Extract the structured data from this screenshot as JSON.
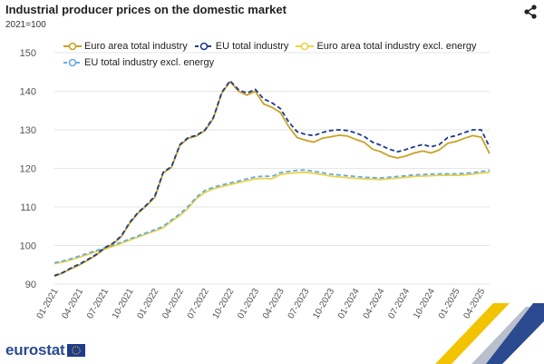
{
  "header": {
    "title": "Industrial producer prices on the domestic market",
    "subtitle": "2021=100"
  },
  "footer": {
    "brand": "eurostat"
  },
  "colors": {
    "gold": "#c9a227",
    "navy": "#1f3b8c",
    "light_yellow": "#ecd348",
    "light_blue": "#6aabe0",
    "grid": "#e6e6e6",
    "axis_text": "#555555"
  },
  "chart_data": {
    "type": "line",
    "title": "Industrial producer prices on the domestic market",
    "ylabel": "2021=100",
    "ylim": [
      90,
      150
    ],
    "yticks": [
      90,
      100,
      110,
      120,
      130,
      140,
      150
    ],
    "xtick_labels": [
      "01-2021",
      "04-2021",
      "07-2021",
      "10-2021",
      "01-2022",
      "04-2022",
      "07-2022",
      "10-2022",
      "01-2023",
      "04-2023",
      "07-2023",
      "10-2023",
      "01-2024",
      "04-2024",
      "07-2024",
      "10-2024",
      "01-2025",
      "04-2025"
    ],
    "grid": "horizontal",
    "legend_position": "top-left",
    "series": [
      {
        "name": "Euro area total industry",
        "color": "#c9a227",
        "style": "solid",
        "values": [
          92.0,
          92.9,
          94.0,
          95.0,
          96.2,
          97.5,
          99.2,
          100.4,
          102.3,
          105.8,
          108.4,
          110.3,
          112.5,
          118.8,
          120.3,
          126.0,
          127.8,
          128.4,
          129.8,
          133.0,
          139.5,
          142.5,
          140.0,
          139.0,
          140.0,
          136.7,
          135.8,
          134.5,
          130.8,
          128.0,
          127.3,
          126.8,
          127.8,
          128.2,
          128.6,
          128.4,
          127.5,
          126.8,
          125.0,
          124.3,
          123.2,
          122.7,
          123.2,
          124.0,
          124.5,
          124.0,
          124.8,
          126.5,
          127.0,
          127.8,
          128.5,
          128.1,
          123.8
        ]
      },
      {
        "name": "EU total industry",
        "color": "#1f3b8c",
        "style": "dashed",
        "values": [
          92.2,
          93.0,
          94.2,
          95.2,
          96.4,
          97.7,
          99.4,
          100.6,
          102.5,
          106.0,
          108.6,
          110.5,
          112.8,
          119.0,
          120.5,
          126.2,
          128.0,
          128.6,
          130.0,
          133.2,
          139.7,
          142.7,
          140.4,
          139.5,
          140.5,
          138.0,
          137.0,
          135.5,
          132.0,
          129.5,
          128.8,
          128.5,
          129.3,
          129.8,
          130.0,
          129.8,
          129.2,
          128.3,
          126.8,
          126.0,
          125.0,
          124.3,
          124.9,
          125.6,
          126.2,
          125.6,
          126.2,
          128.0,
          128.5,
          129.3,
          130.0,
          130.0,
          125.5
        ]
      },
      {
        "name": "Euro area total industry excl. energy",
        "color": "#ecd348",
        "style": "solid",
        "values": [
          95.3,
          95.7,
          96.3,
          97.0,
          97.7,
          98.4,
          99.1,
          99.8,
          100.6,
          101.4,
          102.2,
          103.0,
          103.8,
          104.6,
          106.3,
          107.8,
          109.7,
          112.2,
          113.8,
          114.7,
          115.3,
          115.8,
          116.3,
          116.8,
          117.3,
          117.4,
          117.3,
          118.4,
          118.7,
          118.9,
          119.0,
          118.7,
          118.4,
          118.0,
          117.8,
          117.6,
          117.4,
          117.3,
          117.2,
          117.1,
          117.3,
          117.5,
          117.7,
          117.9,
          118.0,
          118.1,
          118.2,
          118.2,
          118.2,
          118.3,
          118.5,
          118.8,
          119.0
        ]
      },
      {
        "name": "EU total industry excl. energy",
        "color": "#6aabe0",
        "style": "dashed",
        "values": [
          95.5,
          96.0,
          96.6,
          97.3,
          98.0,
          98.7,
          99.4,
          100.1,
          100.9,
          101.7,
          102.5,
          103.3,
          104.1,
          105.0,
          106.6,
          108.2,
          110.2,
          112.6,
          114.3,
          115.1,
          115.7,
          116.2,
          116.7,
          117.3,
          117.8,
          118.0,
          117.9,
          118.9,
          119.2,
          119.5,
          119.6,
          119.2,
          118.9,
          118.5,
          118.3,
          118.1,
          117.9,
          117.7,
          117.6,
          117.5,
          117.7,
          117.9,
          118.1,
          118.3,
          118.4,
          118.5,
          118.6,
          118.6,
          118.6,
          118.7,
          118.9,
          119.2,
          119.5
        ]
      }
    ]
  }
}
